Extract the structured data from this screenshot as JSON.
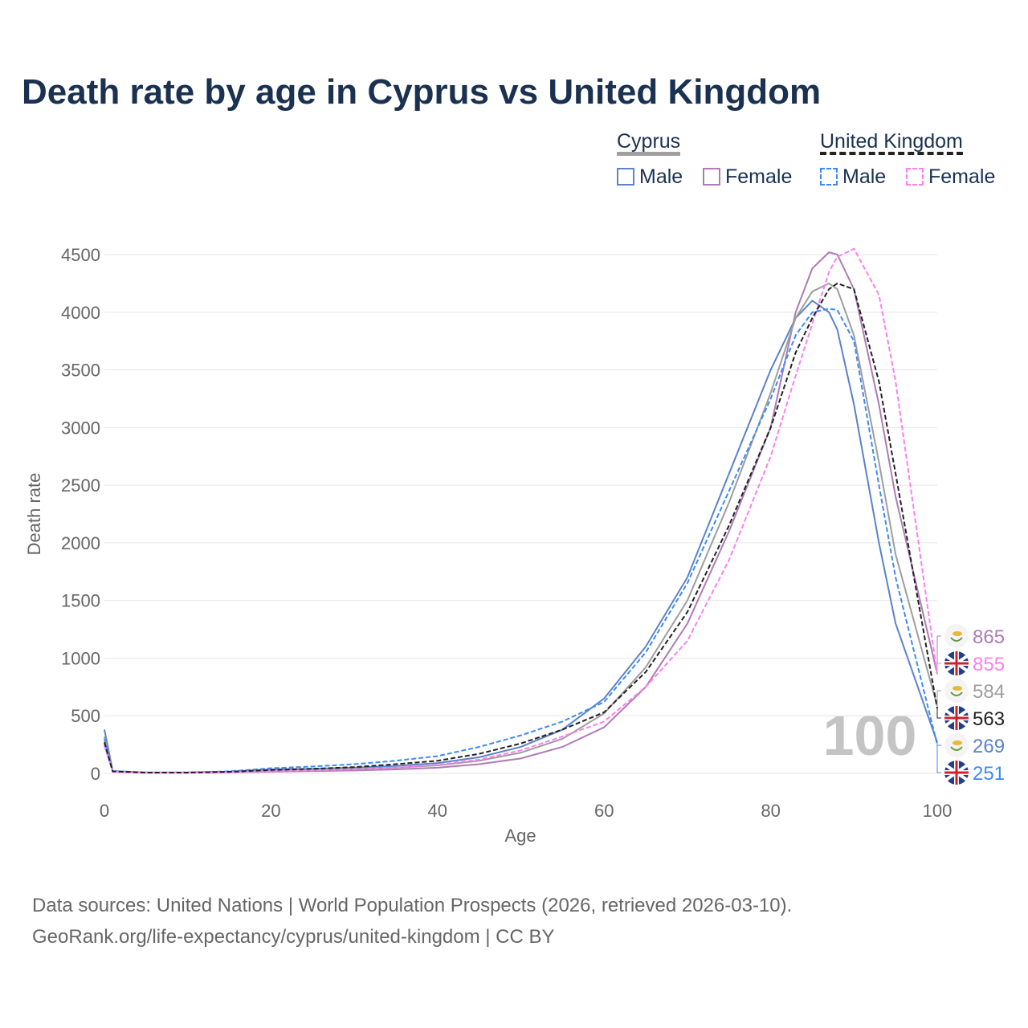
{
  "title": "Death rate by age in Cyprus vs United Kingdom",
  "legend": {
    "group1": "Cyprus",
    "group2": "United Kingdom",
    "male": "Male",
    "female": "Female"
  },
  "source_line1": "Data sources: United Nations | World Population Prospects (2026, retrieved 2026-03-10).",
  "source_line2": "GeoRank.org/life-expectancy/cyprus/united-kingdom | CC BY",
  "year_watermark": "100",
  "chart_data": {
    "type": "line",
    "title": "Death rate by age in Cyprus vs United Kingdom",
    "xlabel": "Age",
    "ylabel": "Death rate",
    "xlim": [
      0,
      100
    ],
    "ylim": [
      0,
      4500
    ],
    "xticks": [
      0,
      20,
      40,
      60,
      80,
      100
    ],
    "yticks": [
      0,
      500,
      1000,
      1500,
      2000,
      2500,
      3000,
      3500,
      4000,
      4500
    ],
    "x": [
      0,
      1,
      5,
      10,
      15,
      20,
      25,
      30,
      35,
      40,
      45,
      50,
      55,
      60,
      65,
      70,
      75,
      80,
      83,
      85,
      87,
      88,
      90,
      93,
      95,
      100
    ],
    "series": [
      {
        "name": "Cyprus Male",
        "color": "#5a83c9",
        "dash": false,
        "end_label": "269",
        "flag": "cyprus",
        "values": [
          380,
          20,
          8,
          8,
          15,
          35,
          40,
          50,
          65,
          90,
          140,
          230,
          380,
          650,
          1100,
          1700,
          2600,
          3500,
          3950,
          4100,
          4000,
          3850,
          3200,
          2000,
          1300,
          269
        ]
      },
      {
        "name": "Cyprus Female",
        "color": "#b07ab5",
        "dash": false,
        "end_label": "865",
        "flag": "cyprus",
        "values": [
          250,
          15,
          6,
          6,
          10,
          15,
          20,
          25,
          35,
          50,
          80,
          130,
          230,
          400,
          750,
          1300,
          2100,
          3000,
          4000,
          4380,
          4520,
          4500,
          4200,
          3200,
          2400,
          865
        ]
      },
      {
        "name": "Cyprus Total",
        "color": "#9e9e9e",
        "dash": false,
        "end_label": "584",
        "flag": "cyprus",
        "values": [
          320,
          18,
          7,
          7,
          12,
          25,
          30,
          38,
          50,
          70,
          110,
          180,
          300,
          520,
          920,
          1500,
          2350,
          3300,
          3950,
          4180,
          4250,
          4200,
          3800,
          2700,
          1900,
          584
        ]
      },
      {
        "name": "United Kingdom Male",
        "color": "#3d8af7",
        "dash": true,
        "end_label": "251",
        "flag": "uk",
        "values": [
          300,
          20,
          8,
          8,
          18,
          45,
          60,
          80,
          110,
          150,
          230,
          330,
          450,
          620,
          1050,
          1650,
          2450,
          3250,
          3800,
          4000,
          4030,
          4020,
          3750,
          2500,
          1700,
          251
        ]
      },
      {
        "name": "United Kingdom Female",
        "color": "#ff7ef0",
        "dash": true,
        "end_label": "855",
        "flag": "uk",
        "values": [
          240,
          15,
          6,
          6,
          10,
          20,
          25,
          35,
          50,
          75,
          120,
          200,
          320,
          450,
          750,
          1150,
          1850,
          2750,
          3450,
          3900,
          4350,
          4480,
          4550,
          4150,
          3400,
          855
        ]
      },
      {
        "name": "United Kingdom Total",
        "color": "#222222",
        "dash": true,
        "end_label": "563",
        "flag": "uk",
        "values": [
          270,
          18,
          7,
          7,
          14,
          30,
          40,
          55,
          80,
          110,
          170,
          260,
          380,
          530,
          880,
          1400,
          2150,
          3000,
          3650,
          3950,
          4200,
          4250,
          4200,
          3400,
          2600,
          563
        ]
      }
    ]
  }
}
